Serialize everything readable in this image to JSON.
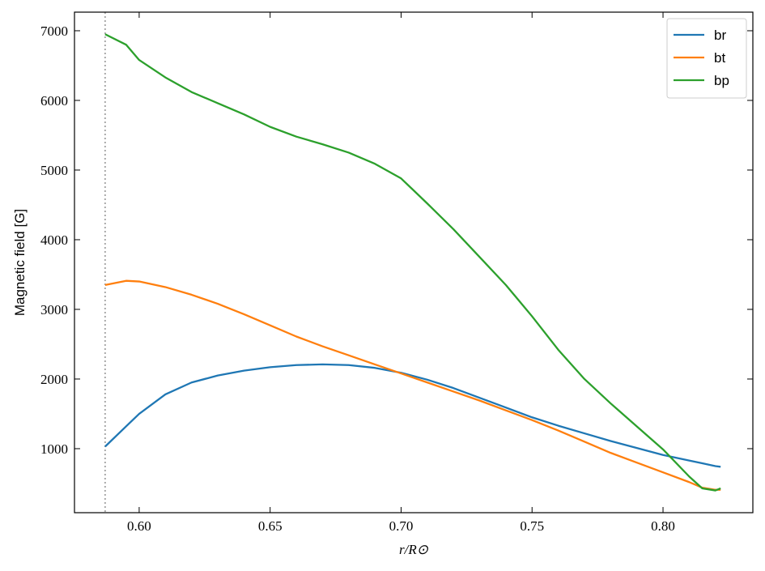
{
  "chart_data": {
    "type": "line",
    "xlabel": "r/R⊙",
    "ylabel": "Magnetic field [G]",
    "x": [
      0.587,
      0.595,
      0.6,
      0.61,
      0.62,
      0.63,
      0.64,
      0.65,
      0.66,
      0.67,
      0.68,
      0.69,
      0.7,
      0.71,
      0.72,
      0.73,
      0.74,
      0.75,
      0.76,
      0.77,
      0.78,
      0.79,
      0.8,
      0.81,
      0.815,
      0.82,
      0.822
    ],
    "series": [
      {
        "name": "br",
        "color": "#1f77b4",
        "values": [
          1030,
          1320,
          1500,
          1780,
          1950,
          2050,
          2120,
          2170,
          2200,
          2210,
          2200,
          2160,
          2090,
          1990,
          1870,
          1730,
          1590,
          1450,
          1330,
          1220,
          1110,
          1010,
          910,
          830,
          790,
          750,
          740
        ]
      },
      {
        "name": "bt",
        "color": "#ff7f0e",
        "values": [
          3350,
          3410,
          3400,
          3320,
          3210,
          3080,
          2930,
          2770,
          2610,
          2470,
          2340,
          2210,
          2080,
          1950,
          1820,
          1690,
          1550,
          1410,
          1260,
          1100,
          940,
          800,
          660,
          520,
          440,
          410,
          410
        ]
      },
      {
        "name": "bp",
        "color": "#2ca02c",
        "values": [
          6950,
          6800,
          6580,
          6330,
          6120,
          5960,
          5800,
          5620,
          5480,
          5370,
          5250,
          5090,
          4880,
          4520,
          4150,
          3750,
          3350,
          2900,
          2420,
          2000,
          1650,
          1320,
          990,
          600,
          430,
          400,
          430
        ]
      }
    ],
    "vline": {
      "x": 0.587,
      "color": "#aaaaaa"
    },
    "xlim": [
      0.5753,
      0.8343
    ],
    "ylim": [
      81,
      7267
    ],
    "xticks": [
      {
        "value": 0.6,
        "label": "0.60"
      },
      {
        "value": 0.65,
        "label": "0.65"
      },
      {
        "value": 0.7,
        "label": "0.70"
      },
      {
        "value": 0.75,
        "label": "0.75"
      },
      {
        "value": 0.8,
        "label": "0.80"
      }
    ],
    "yticks": [
      1000,
      2000,
      3000,
      4000,
      5000,
      6000,
      7000
    ],
    "legend": "upper right",
    "grid": false
  }
}
